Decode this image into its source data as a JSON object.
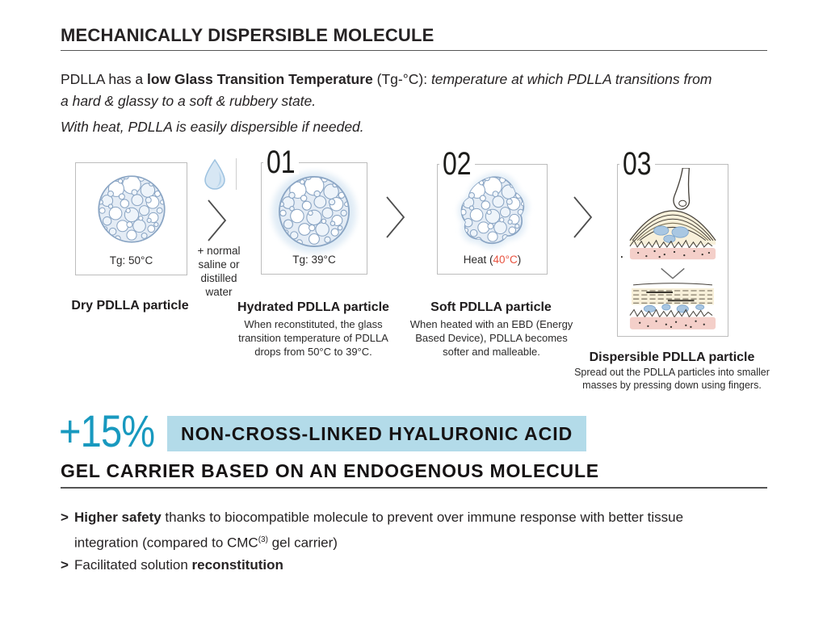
{
  "header": {
    "title": "MECHANICALLY DISPERSIBLE MOLECULE"
  },
  "intro": {
    "pre": "PDLLA has a ",
    "bold": "low Glass Transition Temperature",
    "mid": " (Tg-°C): ",
    "italic": "temperature at which PDLLA transitions from a hard & glassy to a soft & rubbery state.",
    "line2": "With heat, PDLLA is easily dispersible if needed."
  },
  "process": {
    "connector_note": "+ normal\nsaline or\ndistilled\nwater",
    "steps": [
      {
        "number": "",
        "box_label": "Tg: 50°C",
        "title": "Dry PDLLA particle",
        "description": ""
      },
      {
        "number": "01",
        "box_label": "Tg: 39°C",
        "title": "Hydrated PDLLA particle",
        "description": "When reconstituted, the glass transition temperature of PDLLA drops from 50°C to 39°C."
      },
      {
        "number": "02",
        "box_label_pre": "Heat (",
        "box_label_temp": "40°C",
        "box_label_post": ")",
        "title": "Soft PDLLA particle",
        "description": "When heated with an EBD (Energy Based Device), PDLLA becomes softer and malleable."
      },
      {
        "number": "03",
        "box_label": "",
        "title": "Dispersible PDLLA particle",
        "description": "Spread out the PDLLA particles into smaller masses by pressing down using fingers."
      }
    ]
  },
  "highlight": {
    "stat": "+15%",
    "band_label": "NON-CROSS-LINKED HYALURONIC ACID",
    "subtitle": "GEL CARRIER BASED ON AN ENDOGENOUS MOLECULE"
  },
  "benefits": {
    "item1": {
      "marker": ">",
      "bold": "Higher safety",
      "text_a": " thanks to biocompatible molecule to prevent over immune response with better tissue integration (compared to CMC",
      "sup": "(3)",
      "text_b": " gel carrier)"
    },
    "item2": {
      "marker": ">",
      "text_a": "Facilitated solution ",
      "bold": "reconstitution"
    }
  },
  "colors": {
    "accent_teal": "#1899bf",
    "highlight_bg": "#b3dbe9",
    "heat_red": "#e8523f"
  }
}
